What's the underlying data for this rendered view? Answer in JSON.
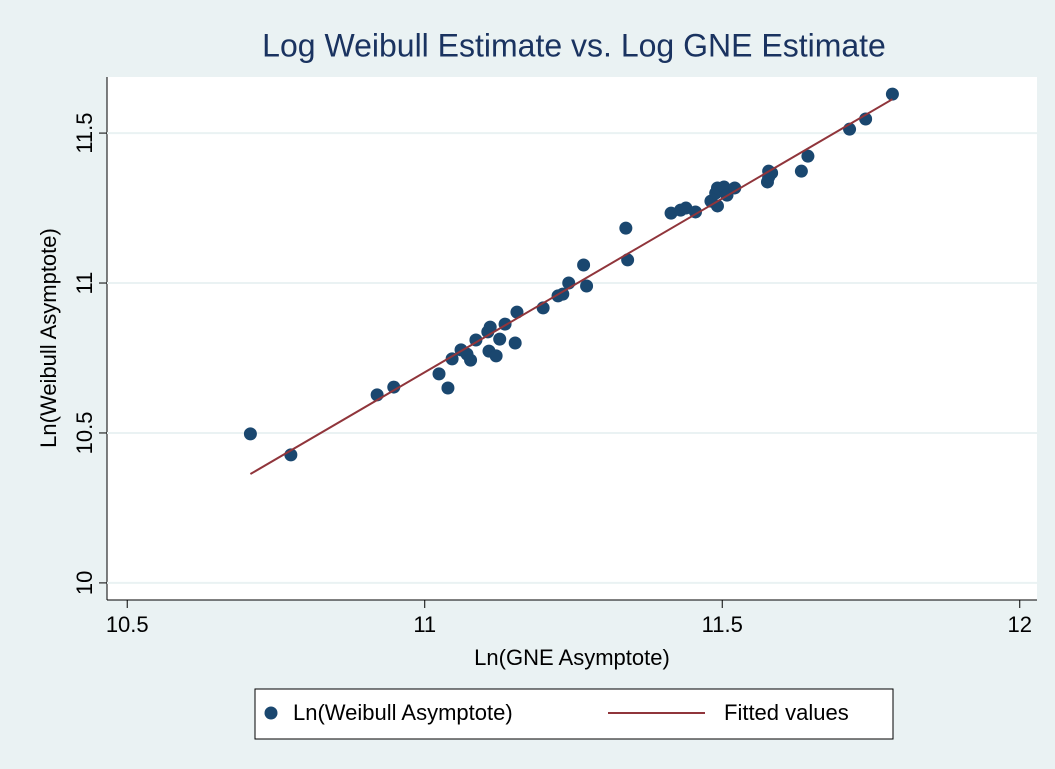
{
  "chart_data": {
    "type": "scatter",
    "title": "Log Weibull Estimate vs. Log GNE Estimate",
    "x_label": "Ln(GNE Asymptote)",
    "y_label": "Ln(Weibull Asymptote)",
    "xlim": [
      10.466,
      12.029
    ],
    "ylim": [
      9.943,
      11.687
    ],
    "xticks": [
      10.5,
      11,
      11.5,
      12
    ],
    "yticks": [
      10,
      10.5,
      11,
      11.5
    ],
    "grid": true,
    "series": [
      {
        "name": "Ln(Weibull Asymptote)",
        "kind": "markers",
        "color": "#1a476f",
        "x": [
          10.707,
          10.775,
          10.92,
          10.948,
          11.024,
          11.039,
          11.046,
          11.061,
          11.071,
          11.077,
          11.086,
          11.106,
          11.11,
          11.108,
          11.12,
          11.126,
          11.135,
          11.152,
          11.155,
          11.199,
          11.224,
          11.232,
          11.242,
          11.267,
          11.272,
          11.338,
          11.341,
          11.414,
          11.43,
          11.439,
          11.455,
          11.481,
          11.489,
          11.492,
          11.492,
          11.503,
          11.508,
          11.521,
          11.576,
          11.578,
          11.583,
          11.578,
          11.633,
          11.644,
          11.714,
          11.741,
          11.786
        ],
        "values": [
          10.497,
          10.427,
          10.627,
          10.653,
          10.697,
          10.65,
          10.747,
          10.777,
          10.763,
          10.743,
          10.81,
          10.837,
          10.853,
          10.773,
          10.757,
          10.813,
          10.863,
          10.8,
          10.903,
          10.917,
          10.957,
          10.963,
          11.0,
          11.06,
          10.99,
          11.183,
          11.077,
          11.233,
          11.243,
          11.25,
          11.237,
          11.273,
          11.3,
          11.317,
          11.257,
          11.32,
          11.293,
          11.317,
          11.337,
          11.353,
          11.367,
          11.373,
          11.373,
          11.423,
          11.513,
          11.547,
          11.63
        ]
      },
      {
        "name": "Fitted values",
        "kind": "line",
        "color": "#90353b",
        "x": [
          10.707,
          11.786
        ],
        "values": [
          10.363,
          11.613
        ]
      }
    ]
  }
}
